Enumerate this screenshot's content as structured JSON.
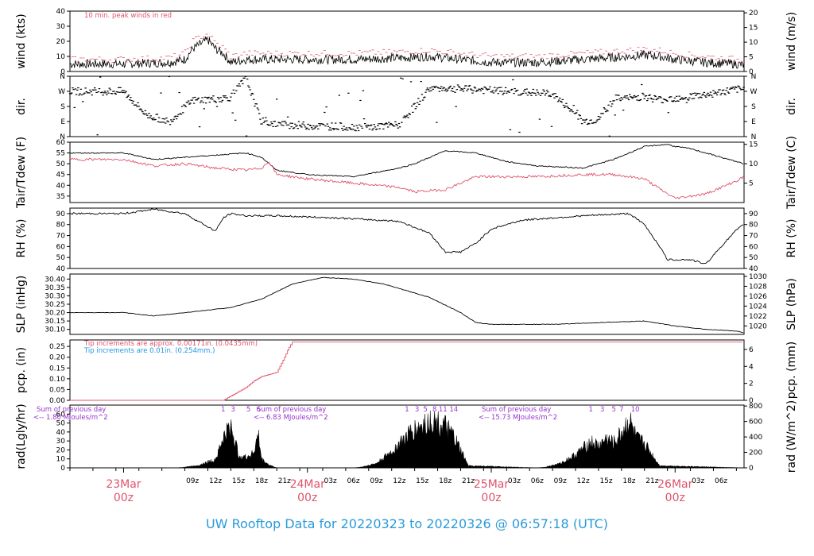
{
  "footer_title": "UW Rooftop Data for 20220323  to  20220326 @ 06:57:18  (UTC)",
  "colors": {
    "red": "#df536b",
    "blue": "#2297e6",
    "purple": "#9933cc",
    "black": "#000000",
    "footer": "#2a9ad8"
  },
  "chart_data": [
    {
      "type": "line",
      "panel": "wind",
      "ylabel": "wind (kts)",
      "ylabel_right": "wind (m/s)",
      "ylim": [
        0,
        40
      ],
      "yticks": [
        0,
        10,
        20,
        30,
        40
      ],
      "yticks_right": [
        0,
        5,
        10,
        15,
        20
      ],
      "annotation": "10 min. peak winds in red",
      "x_hours": [
        0,
        6,
        8,
        9,
        10,
        11,
        12,
        13,
        14,
        16,
        18,
        24,
        30,
        36,
        40,
        44,
        48,
        54,
        60,
        66,
        68,
        70,
        72,
        76,
        80,
        81
      ],
      "series": [
        {
          "values": [
            5,
            6,
            8,
            15,
            18,
            21,
            15,
            12,
            6,
            8,
            8,
            8,
            8,
            9,
            10,
            8,
            6,
            6,
            8,
            10,
            11,
            10,
            8,
            6,
            5,
            4
          ]
        },
        {
          "values": [
            8,
            9,
            12,
            20,
            23,
            25,
            19,
            16,
            10,
            12,
            12,
            12,
            12,
            13,
            14,
            12,
            10,
            10,
            12,
            14,
            15,
            14,
            12,
            10,
            8,
            7
          ]
        }
      ]
    },
    {
      "type": "scatter",
      "panel": "dir",
      "ylabel": "dir.",
      "ylabel_right": "dir.",
      "yticks": [
        "N",
        "E",
        "S",
        "W",
        "N"
      ],
      "x_hours": [
        0,
        3,
        6,
        9,
        12,
        14,
        16,
        18,
        20,
        24,
        28,
        32,
        36,
        40,
        44,
        48,
        52,
        56,
        60,
        62,
        64,
        66,
        68,
        70,
        72,
        76,
        80
      ],
      "values": [
        270,
        130,
        90,
        215,
        225,
        235,
        350,
        90,
        75,
        65,
        60,
        55,
        70,
        290,
        285,
        275,
        265,
        255,
        90,
        100,
        225,
        230,
        240,
        220,
        230,
        250,
        280
      ]
    },
    {
      "type": "line",
      "panel": "temp",
      "ylabel": "Tair/Tdew (F)",
      "ylabel_right": "Tair/Tdew (C)",
      "ylim": [
        32,
        60
      ],
      "yticks": [
        35,
        40,
        45,
        50,
        55,
        60
      ],
      "yticks_right": [
        5,
        10,
        15
      ],
      "x_hours": [
        0,
        4,
        8,
        12,
        16,
        18,
        19,
        20,
        24,
        30,
        36,
        38,
        42,
        46,
        50,
        54,
        60,
        64,
        68,
        71,
        72,
        74,
        76,
        80,
        81
      ],
      "series": [
        {
          "values": [
            55,
            52,
            53,
            54,
            55,
            53,
            50,
            47,
            45,
            44,
            48,
            50,
            56,
            55,
            51,
            49,
            48,
            52,
            58,
            59,
            58,
            57,
            55,
            51,
            50
          ]
        },
        {
          "values": [
            52,
            49,
            50,
            48,
            47,
            48,
            51,
            45,
            43,
            41,
            39,
            37,
            38,
            44,
            44,
            44,
            45,
            45,
            43,
            36,
            34,
            35,
            36,
            42,
            44
          ]
        }
      ]
    },
    {
      "type": "line",
      "panel": "rh",
      "ylabel": "RH (%)",
      "ylabel_right": "RH (%)",
      "ylim": [
        40,
        95
      ],
      "yticks": [
        40,
        50,
        60,
        70,
        80,
        90
      ],
      "yticks_right": [
        40,
        50,
        60,
        70,
        80,
        90
      ],
      "x_hours": [
        0,
        4,
        8,
        10,
        12,
        13,
        14,
        16,
        20,
        28,
        36,
        40,
        42,
        44,
        46,
        48,
        52,
        60,
        66,
        68,
        70,
        71,
        74,
        76,
        78,
        80,
        81
      ],
      "values": [
        90,
        94,
        90,
        82,
        74,
        86,
        90,
        88,
        88,
        86,
        83,
        72,
        55,
        55,
        63,
        76,
        84,
        88,
        90,
        80,
        60,
        48,
        48,
        44,
        60,
        75,
        80
      ]
    },
    {
      "type": "line",
      "panel": "slp",
      "ylabel": "SLP (inHg)",
      "ylabel_right": "SLP (hPa)",
      "ylim": [
        30.07,
        30.43
      ],
      "yticks": [
        30.1,
        30.15,
        30.2,
        30.25,
        30.3,
        30.35,
        30.4
      ],
      "ytick_labels": [
        "30.10",
        "30.15",
        "30.20",
        "30.25",
        "30.30",
        "30.35",
        "30.40"
      ],
      "yticks_right": [
        1020,
        1022,
        1024,
        1026,
        1028,
        1030
      ],
      "x_hours": [
        0,
        4,
        8,
        14,
        18,
        22,
        26,
        30,
        34,
        40,
        44,
        46,
        48,
        56,
        62,
        68,
        72,
        76,
        80,
        81
      ],
      "values": [
        30.2,
        30.18,
        30.2,
        30.23,
        30.28,
        30.37,
        30.41,
        30.4,
        30.37,
        30.29,
        30.2,
        30.14,
        30.13,
        30.13,
        30.14,
        30.15,
        30.12,
        30.1,
        30.09,
        30.08
      ]
    },
    {
      "type": "line",
      "panel": "pcp",
      "ylabel": "pcp. (in)",
      "ylabel_right": "pcp. (mm)",
      "ylim": [
        0,
        0.28
      ],
      "yticks": [
        0.0,
        0.05,
        0.1,
        0.15,
        0.2,
        0.25
      ],
      "ytick_labels": [
        "0.00",
        "0.05",
        "0.10",
        "0.15",
        "0.20",
        "0.25"
      ],
      "yticks_right": [
        0,
        2,
        4,
        6
      ],
      "annotations": [
        "Tip increments are approx. 0.00171in. (0.0435mm)",
        "Tip increments are 0.01in. (0.254mm.)"
      ],
      "x_hours": [
        0,
        13,
        14,
        15,
        16,
        17,
        18,
        19,
        20,
        21,
        21.5,
        22,
        81
      ],
      "values": [
        0.0,
        0.0,
        0.02,
        0.04,
        0.06,
        0.09,
        0.11,
        0.12,
        0.13,
        0.2,
        0.24,
        0.27,
        0.27
      ]
    },
    {
      "type": "area",
      "panel": "rad",
      "ylabel": "rad(Lgly/hr)",
      "ylabel_right": "rad (W/m^2)",
      "ylim": [
        0,
        70
      ],
      "yticks": [
        0,
        10,
        20,
        30,
        40,
        50,
        60
      ],
      "yticks_right": [
        0,
        200,
        400,
        600,
        800
      ],
      "daily_notes": [
        {
          "line1": "Sum of previous day",
          "line2": "<-- 1.80 MJoules/m^2"
        },
        {
          "line1": "Sum of previous day",
          "line2": "<-- 6.83 MJoules/m^2"
        },
        {
          "line1": "Sum of previous day",
          "line2": "<-- 15.73 MJoules/m^2"
        }
      ],
      "hour_markers": [
        {
          "x": 13,
          "label": "1"
        },
        {
          "x": 14.3,
          "label": "3"
        },
        {
          "x": 16.3,
          "label": "5"
        },
        {
          "x": 17.6,
          "label": "6"
        },
        {
          "x": 37,
          "label": "1"
        },
        {
          "x": 38.3,
          "label": "3"
        },
        {
          "x": 39.4,
          "label": "5"
        },
        {
          "x": 40.6,
          "label": "8"
        },
        {
          "x": 41.7,
          "label": "11"
        },
        {
          "x": 43.1,
          "label": "14"
        },
        {
          "x": 61,
          "label": "1"
        },
        {
          "x": 62.5,
          "label": "3"
        },
        {
          "x": 64,
          "label": "5"
        },
        {
          "x": 65,
          "label": "7"
        },
        {
          "x": 66.8,
          "label": "10"
        }
      ],
      "x_hours": [
        0,
        7,
        8,
        10,
        12,
        13,
        14,
        15,
        16,
        17,
        17.6,
        18,
        19,
        20,
        30,
        31,
        33,
        35,
        37,
        38,
        39,
        40,
        41,
        42,
        43,
        44,
        45,
        54,
        55,
        57,
        59,
        61,
        62,
        63,
        64,
        65,
        66,
        67,
        68,
        69,
        70,
        81
      ],
      "values": [
        0,
        0,
        1,
        4,
        12,
        40,
        58,
        18,
        14,
        22,
        45,
        12,
        4,
        0,
        0,
        1,
        6,
        22,
        44,
        52,
        58,
        64,
        62,
        56,
        44,
        24,
        3,
        0,
        1,
        6,
        18,
        36,
        30,
        40,
        34,
        48,
        66,
        40,
        34,
        18,
        3,
        0
      ]
    }
  ],
  "x_axis": {
    "start": "20220323 06:57 UTC",
    "hour_labels": [
      "09z",
      "12z",
      "15z",
      "18z",
      "21z",
      "03z",
      "06z",
      "09z",
      "12z",
      "15z",
      "18z",
      "21z",
      "03z",
      "06z",
      "09z",
      "12z",
      "15z",
      "18z",
      "21z",
      "03z",
      "06z"
    ],
    "hour_label_hours": [
      9,
      12,
      15,
      18,
      21,
      27,
      30,
      33,
      36,
      39,
      42,
      45,
      51,
      54,
      57,
      60,
      63,
      66,
      69,
      75,
      78
    ],
    "day_labels": [
      {
        "hour": 0,
        "top": "23Mar",
        "bottom": "00z"
      },
      {
        "hour": 24,
        "top": "24Mar",
        "bottom": "00z"
      },
      {
        "hour": 48,
        "top": "25Mar",
        "bottom": "00z"
      },
      {
        "hour": 72,
        "top": "26Mar",
        "bottom": "00z"
      }
    ]
  }
}
